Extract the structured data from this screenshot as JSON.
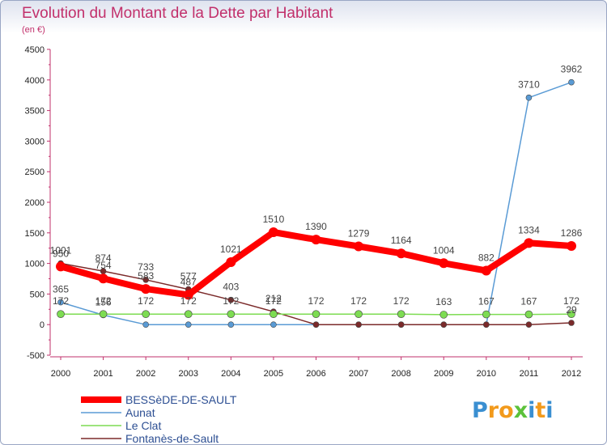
{
  "chart_data": {
    "type": "line",
    "title": "Evolution du Montant de la Dette par Habitant",
    "subtitle": "(en €)",
    "xlabel": "",
    "ylabel": "",
    "x": [
      "2000",
      "2001",
      "2002",
      "2003",
      "2004",
      "2005",
      "2006",
      "2007",
      "2008",
      "2009",
      "2010",
      "2011",
      "2012"
    ],
    "yticks": [
      "-500",
      "0",
      "500",
      "1000",
      "1500",
      "2000",
      "2500",
      "3000",
      "3500",
      "4000",
      "4500"
    ],
    "ylim": [
      -500,
      4500
    ],
    "grid": false,
    "legend_position": "bottom-left",
    "series": [
      {
        "name": "BESSèDE-DE-SAULT",
        "color": "#ff0000",
        "values": [
          950,
          754,
          583,
          487,
          1021,
          1510,
          1390,
          1279,
          1164,
          1004,
          882,
          1334,
          1286
        ],
        "labels": [
          "950",
          "754",
          "583",
          "487",
          "1021",
          "1510",
          "1390",
          "1279",
          "1164",
          "1004",
          "882",
          "1334",
          "1286"
        ]
      },
      {
        "name": "Aunat",
        "color": "#5a9bd5",
        "values": [
          365,
          156,
          0,
          0,
          0,
          0,
          0,
          0,
          0,
          0,
          0,
          3710,
          3962
        ],
        "labels": [
          "365",
          "156",
          "",
          "",
          "",
          "",
          "",
          "",
          "",
          "",
          "",
          "3710",
          "3962"
        ]
      },
      {
        "name": "Le Clat",
        "color": "#7ddc52",
        "values": [
          172,
          172,
          172,
          172,
          172,
          172,
          172,
          172,
          172,
          163,
          167,
          167,
          172
        ],
        "labels": [
          "172",
          "172",
          "172",
          "172",
          "172",
          "172",
          "172",
          "172",
          "172",
          "163",
          "167",
          "167",
          "172"
        ]
      },
      {
        "name": "Fontanès-de-Sault",
        "color": "#7b2a2a",
        "values": [
          1001,
          874,
          733,
          577,
          403,
          212,
          0,
          0,
          0,
          0,
          0,
          0,
          29
        ],
        "labels": [
          "1001",
          "874",
          "733",
          "577",
          "403",
          "212",
          "",
          "",
          "",
          "",
          "",
          "",
          "29"
        ]
      }
    ]
  },
  "logo_text": "Proxiti",
  "colors": {
    "title": "#c2306b",
    "axis": "#c2306b",
    "legend_text": "#2d4f93"
  }
}
